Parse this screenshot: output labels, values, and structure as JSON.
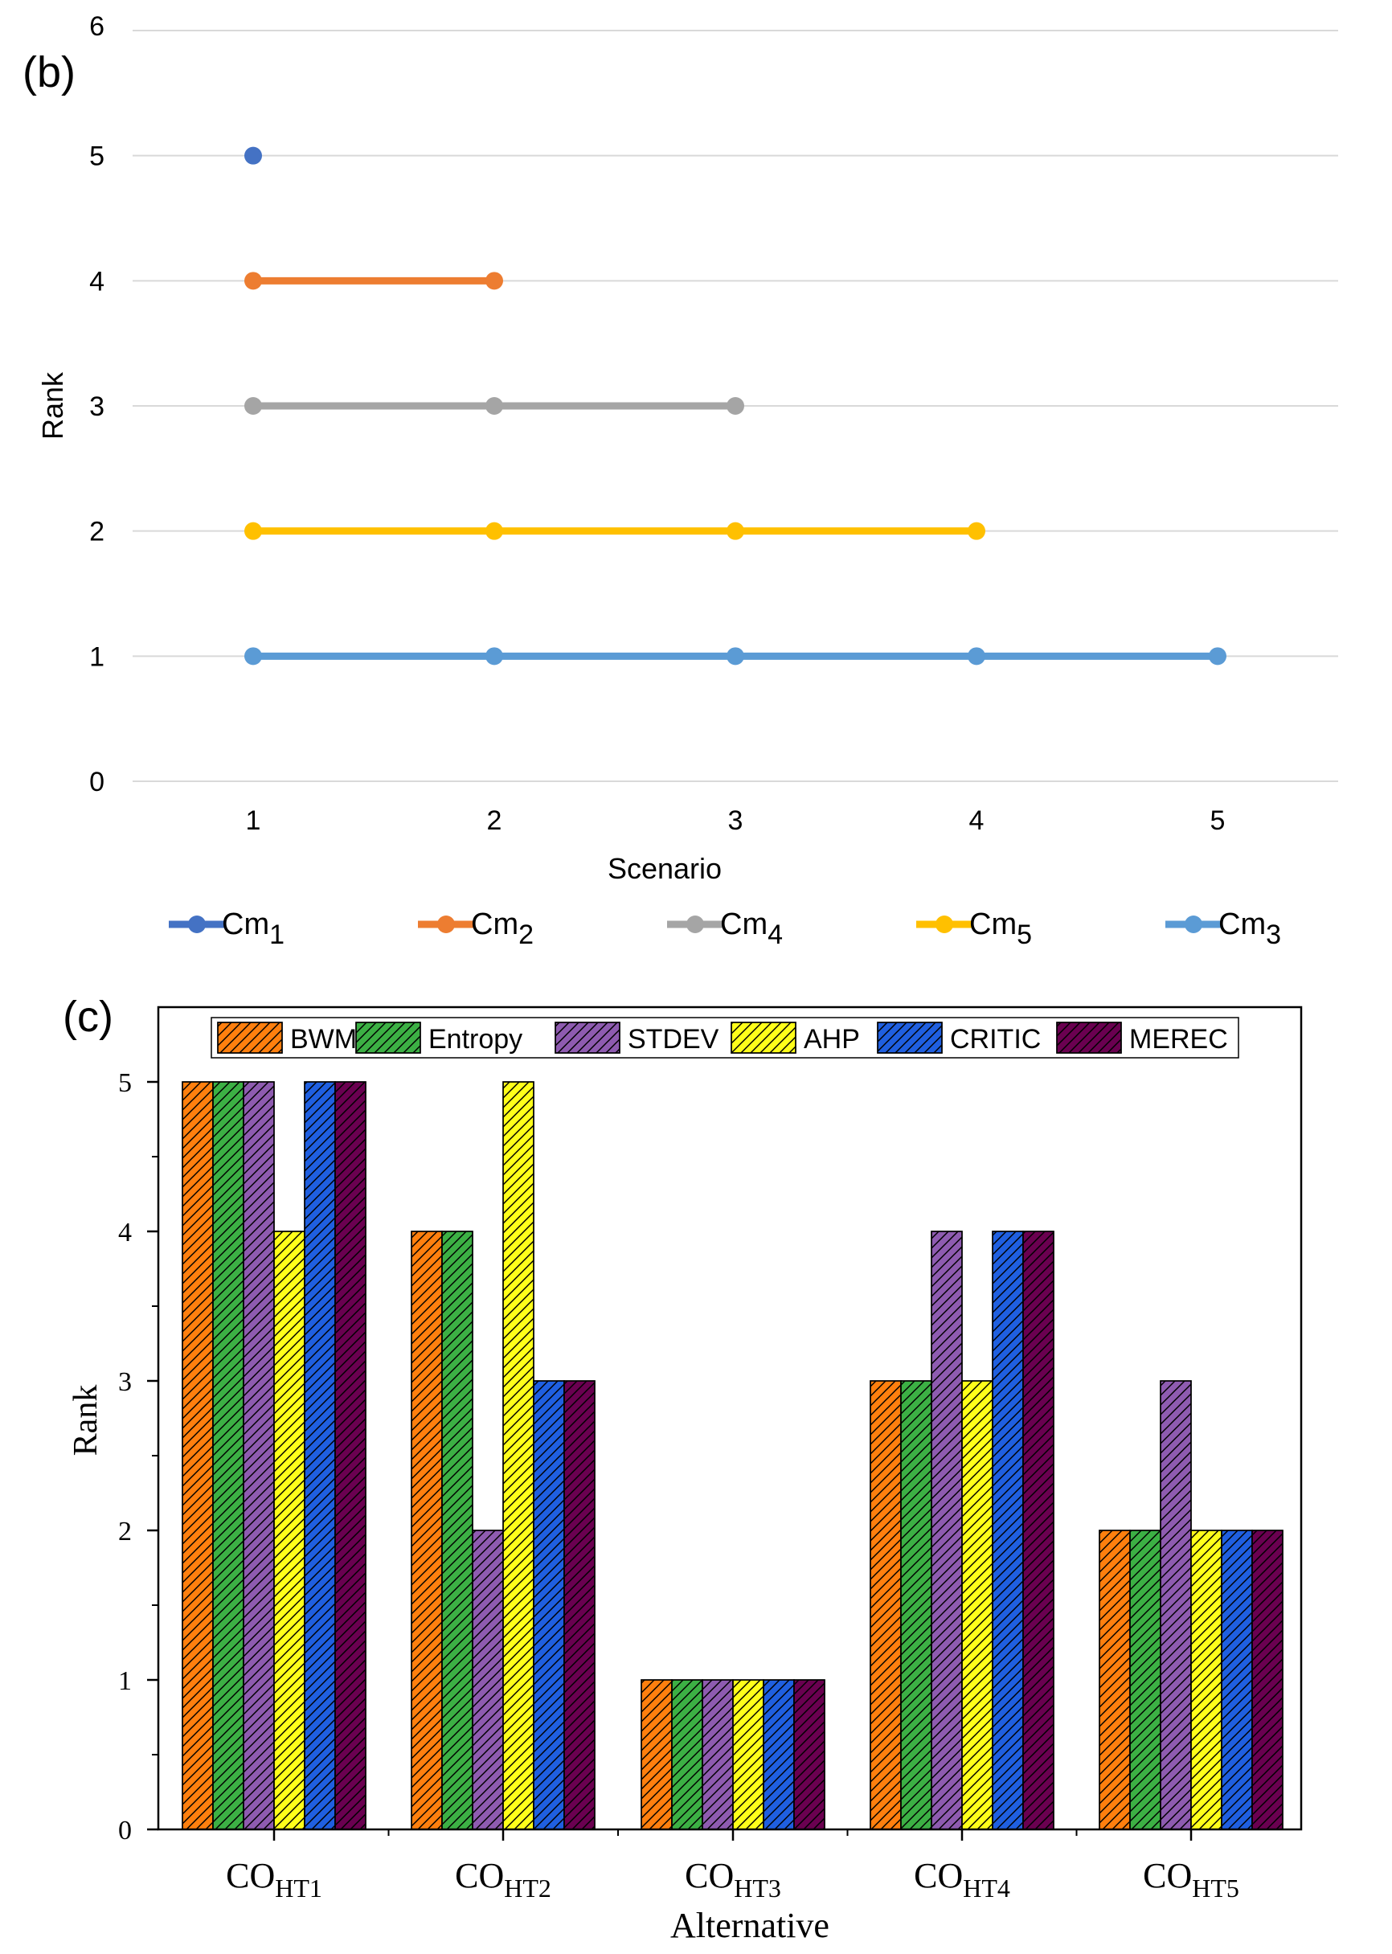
{
  "chart_data": [
    {
      "panel": "(b)",
      "type": "line",
      "xlabel": "Scenario",
      "ylabel": "Rank",
      "x_ticks": [
        "1",
        "2",
        "3",
        "4",
        "5"
      ],
      "y_ticks": [
        "0",
        "1",
        "2",
        "3",
        "4",
        "5",
        "6"
      ],
      "ylim": [
        0,
        6
      ],
      "xlim": [
        0.5,
        5.5
      ],
      "grid": true,
      "legend_position": "bottom",
      "series": [
        {
          "name": "Cm",
          "sub": "1",
          "color": "#4472c4",
          "x": [
            1
          ],
          "y": [
            5
          ]
        },
        {
          "name": "Cm",
          "sub": "2",
          "color": "#ed7d31",
          "x": [
            1,
            2
          ],
          "y": [
            4,
            4
          ]
        },
        {
          "name": "Cm",
          "sub": "4",
          "color": "#a5a5a5",
          "x": [
            1,
            2,
            3
          ],
          "y": [
            3,
            3,
            3
          ]
        },
        {
          "name": "Cm",
          "sub": "5",
          "color": "#ffc000",
          "x": [
            1,
            2,
            3,
            4
          ],
          "y": [
            2,
            2,
            2,
            2
          ]
        },
        {
          "name": "Cm",
          "sub": "3",
          "color": "#5b9bd5",
          "x": [
            1,
            2,
            3,
            4,
            5
          ],
          "y": [
            1,
            1,
            1,
            1,
            1
          ]
        }
      ]
    },
    {
      "panel": "(c)",
      "type": "bar",
      "xlabel": "Alternative",
      "ylabel": "Rank",
      "ylim": [
        0,
        5.5
      ],
      "y_ticks": [
        "0",
        "1",
        "2",
        "3",
        "4",
        "5"
      ],
      "legend_position": "top",
      "categories": [
        {
          "main": "CO",
          "sub": "HT1"
        },
        {
          "main": "CO",
          "sub": "HT2"
        },
        {
          "main": "CO",
          "sub": "HT3"
        },
        {
          "main": "CO",
          "sub": "HT4"
        },
        {
          "main": "CO",
          "sub": "HT5"
        }
      ],
      "series": [
        {
          "name": "BWM",
          "color": "#ff7f0e",
          "values": [
            5,
            4,
            1,
            3,
            2
          ]
        },
        {
          "name": "Entropy",
          "color": "#3cb044",
          "values": [
            5,
            4,
            1,
            3,
            2
          ]
        },
        {
          "name": "STDEV",
          "color": "#8e5bb0",
          "values": [
            5,
            2,
            1,
            4,
            3
          ]
        },
        {
          "name": "AHP",
          "color": "#ffff1a",
          "values": [
            4,
            5,
            1,
            3,
            2
          ]
        },
        {
          "name": "CRITIC",
          "color": "#1f5fe0",
          "values": [
            5,
            3,
            1,
            4,
            2
          ]
        },
        {
          "name": "MEREC",
          "color": "#6a0050",
          "values": [
            5,
            3,
            1,
            4,
            2
          ]
        }
      ]
    }
  ]
}
